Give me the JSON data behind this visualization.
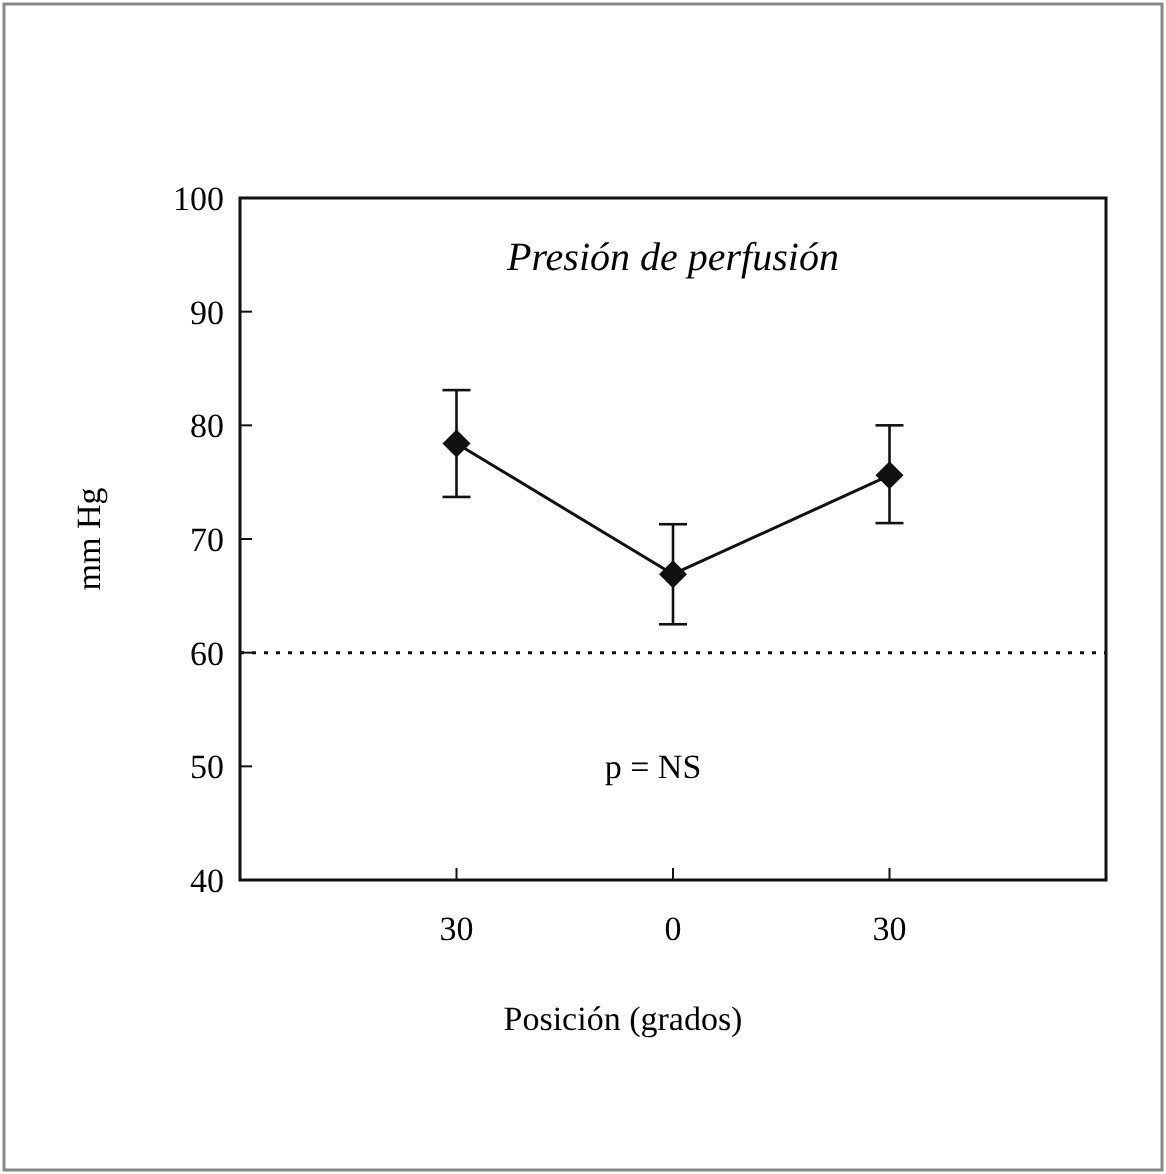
{
  "chart_data": {
    "type": "line",
    "title": "Presión de perfusión",
    "xlabel": "Posición (grados)",
    "ylabel": "mm Hg",
    "categories": [
      "30",
      "0",
      "30"
    ],
    "series": [
      {
        "color": "#111111",
        "values": [
          78.4,
          66.9,
          75.6
        ],
        "errors": [
          [
            73.7,
            83.1
          ],
          [
            62.5,
            71.3
          ],
          [
            71.4,
            80.0
          ]
        ]
      }
    ],
    "ylim": [
      40,
      100
    ],
    "yticks": [
      40,
      50,
      60,
      70,
      80,
      90,
      100
    ],
    "ref_lines": [
      {
        "axis": "y",
        "value": 60,
        "line_style": "dotted",
        "color": "#111111"
      }
    ],
    "annotations": [
      "p = NS"
    ],
    "marker": "diamond",
    "line_style": "solid",
    "grid": false
  }
}
